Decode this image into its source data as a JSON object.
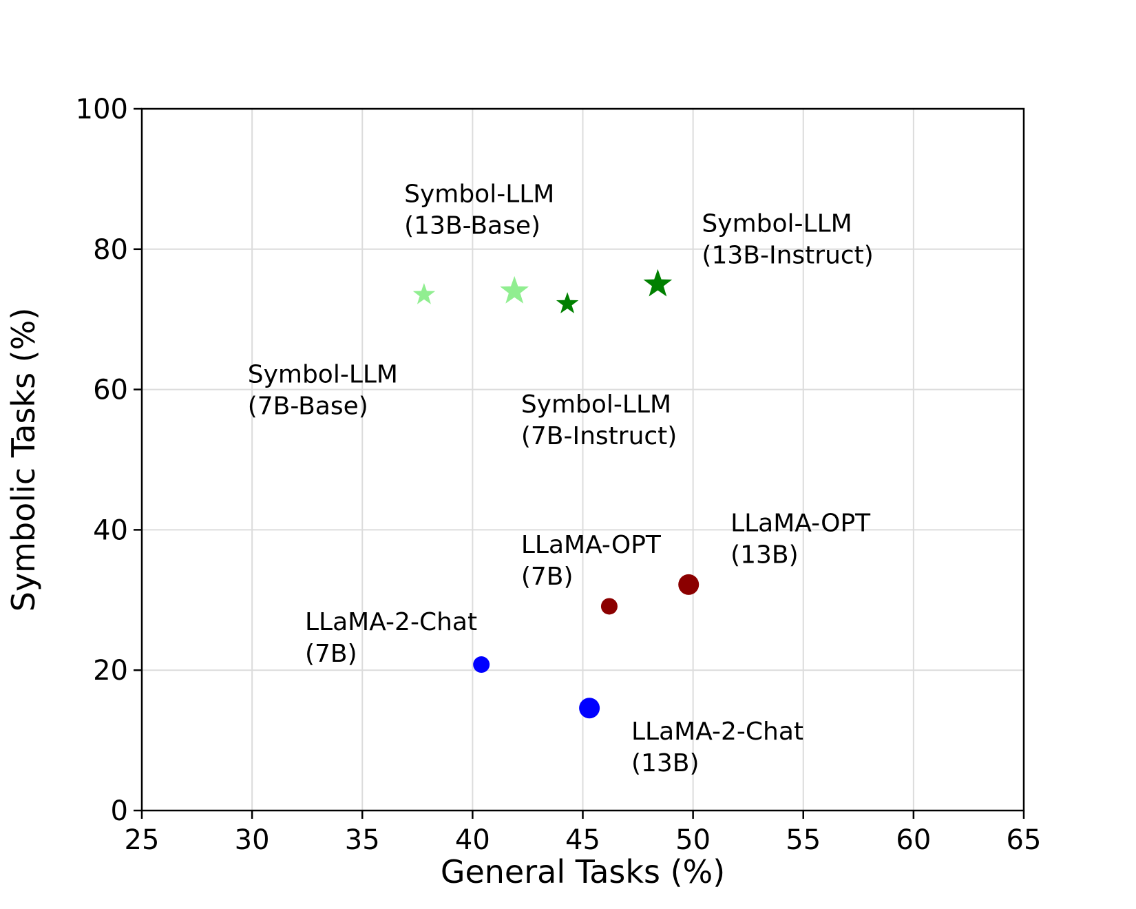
{
  "chart_data": {
    "type": "scatter",
    "xlabel": "General Tasks (%)",
    "ylabel": "Symbolic Tasks (%)",
    "xlim": [
      25,
      65
    ],
    "ylim": [
      0,
      100
    ],
    "xticks": [
      25,
      30,
      35,
      40,
      45,
      50,
      55,
      60,
      65
    ],
    "yticks": [
      0,
      20,
      40,
      60,
      80,
      100
    ],
    "grid": true,
    "points": [
      {
        "x": 37.8,
        "y": 73.5,
        "marker": "star",
        "size": "small",
        "color": "#90ee90"
      },
      {
        "x": 41.9,
        "y": 74.0,
        "marker": "star",
        "size": "large",
        "color": "#90ee90"
      },
      {
        "x": 44.3,
        "y": 72.2,
        "marker": "star",
        "size": "small",
        "color": "#008000"
      },
      {
        "x": 48.4,
        "y": 75.0,
        "marker": "star",
        "size": "large",
        "color": "#008000"
      },
      {
        "x": 40.4,
        "y": 20.8,
        "marker": "circle",
        "size": "small",
        "color": "#0000ff"
      },
      {
        "x": 45.3,
        "y": 14.6,
        "marker": "circle",
        "size": "large",
        "color": "#0000ff"
      },
      {
        "x": 46.2,
        "y": 29.1,
        "marker": "circle",
        "size": "small",
        "color": "#8b0000"
      },
      {
        "x": 49.8,
        "y": 32.2,
        "marker": "circle",
        "size": "large",
        "color": "#8b0000"
      }
    ],
    "annotations": [
      {
        "lines": [
          "Symbol-LLM",
          "(13B-Base)"
        ],
        "x": 36.9,
        "y": 86.7
      },
      {
        "lines": [
          "Symbol-LLM",
          "(13B-Instruct)"
        ],
        "x": 50.4,
        "y": 82.5
      },
      {
        "lines": [
          "Symbol-LLM",
          "(7B-Base)"
        ],
        "x": 29.8,
        "y": 61.0
      },
      {
        "lines": [
          "Symbol-LLM",
          "(7B-Instruct)"
        ],
        "x": 42.2,
        "y": 56.7
      },
      {
        "lines": [
          "LLaMA-OPT",
          "(13B)"
        ],
        "x": 51.7,
        "y": 39.8
      },
      {
        "lines": [
          "LLaMA-OPT",
          "(7B)"
        ],
        "x": 42.2,
        "y": 36.7
      },
      {
        "lines": [
          "LLaMA-2-Chat",
          "(7B)"
        ],
        "x": 32.4,
        "y": 25.7
      },
      {
        "lines": [
          "LLaMA-2-Chat",
          "(13B)"
        ],
        "x": 47.2,
        "y": 10.1
      }
    ]
  }
}
